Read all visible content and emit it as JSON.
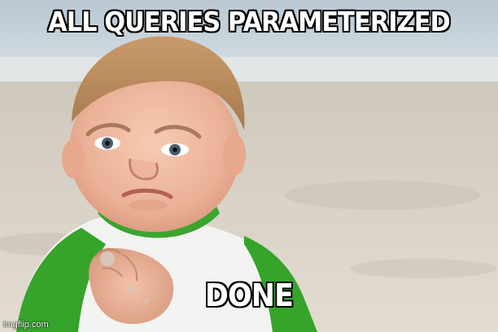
{
  "meme": {
    "top_text": "ALL QUERIES PARAMETERIZED",
    "bottom_text": "DONE",
    "watermark": "imgflip.com"
  },
  "colors": {
    "caption_fill": "#ffffff",
    "caption_stroke": "#000000",
    "shirt_green": "#3aa52e",
    "sky": "#c9d6df",
    "sand": "#d9d2c6"
  }
}
